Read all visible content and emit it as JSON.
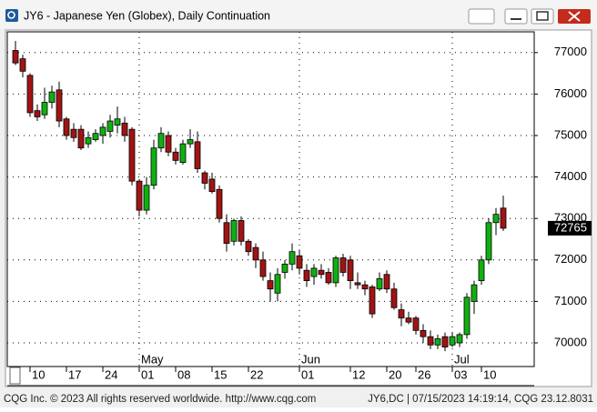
{
  "window_title": "JY6 - Japanese Yen (Globex), Daily Continuation",
  "footer_left": "CQG Inc. © 2023 All rights reserved worldwide. http://www.cqg.com",
  "footer_right": "JY6,DC | 07/15/2023 14:19:14, CQG 23.12.8031",
  "chart_data": {
    "type": "candlestick",
    "categories": [
      null,
      null,
      "10",
      null,
      null,
      null,
      null,
      "17",
      null,
      null,
      null,
      null,
      "24",
      null,
      null,
      null,
      null,
      "01",
      null,
      null,
      null,
      null,
      "08",
      null,
      null,
      null,
      null,
      "15",
      null,
      null,
      null,
      null,
      "22",
      null,
      null,
      null,
      null,
      null,
      null,
      "01",
      null,
      null,
      null,
      null,
      null,
      null,
      "12",
      null,
      null,
      null,
      null,
      "20",
      null,
      null,
      null,
      "26",
      null,
      null,
      null,
      null,
      "03",
      null,
      null,
      null,
      "10",
      null,
      null,
      null
    ],
    "months": [
      null,
      null,
      null,
      null,
      null,
      null,
      null,
      null,
      null,
      null,
      null,
      null,
      null,
      null,
      null,
      null,
      null,
      "May",
      null,
      null,
      null,
      null,
      null,
      null,
      null,
      null,
      null,
      null,
      null,
      null,
      null,
      null,
      null,
      null,
      null,
      null,
      null,
      null,
      null,
      "Jun",
      null,
      null,
      null,
      null,
      null,
      null,
      null,
      null,
      null,
      null,
      null,
      null,
      null,
      null,
      null,
      null,
      null,
      null,
      null,
      null,
      "Jul",
      null,
      null,
      null,
      null,
      null,
      null,
      null
    ],
    "open": [
      77050,
      76850,
      76450,
      75600,
      75500,
      75800,
      76100,
      75400,
      75150,
      75150,
      74800,
      74900,
      75000,
      75100,
      75250,
      75300,
      75150,
      73900,
      73200,
      73800,
      74700,
      75000,
      74600,
      74350,
      74800,
      74850,
      74100,
      73950,
      73700,
      72900,
      72450,
      72950,
      72450,
      72300,
      72000,
      71500,
      71200,
      71700,
      71900,
      72100,
      71750,
      71600,
      71750,
      71700,
      71450,
      72050,
      72000,
      71450,
      71400,
      71350,
      71300,
      71650,
      71300,
      70800,
      70600,
      70600,
      70300,
      70150,
      69950,
      70150,
      69950,
      70000,
      70200,
      71000,
      71500,
      72000,
      72900,
      73250
    ],
    "high": [
      77280,
      76950,
      76500,
      75750,
      76150,
      76200,
      76300,
      75450,
      75300,
      75250,
      75100,
      75150,
      75300,
      75500,
      75700,
      75450,
      75200,
      73950,
      74000,
      74900,
      75200,
      75100,
      74700,
      74900,
      75150,
      75100,
      74150,
      74100,
      73800,
      73100,
      73000,
      73050,
      72500,
      72400,
      72200,
      71700,
      71800,
      72000,
      72400,
      72250,
      71900,
      71900,
      71900,
      71800,
      72100,
      72150,
      72100,
      71700,
      71500,
      71400,
      71700,
      71750,
      71450,
      70950,
      70750,
      70650,
      70450,
      70300,
      70200,
      70250,
      70250,
      70250,
      71200,
      71500,
      72100,
      73000,
      73250,
      73550
    ],
    "low": [
      76700,
      76400,
      75450,
      75350,
      75400,
      75650,
      75200,
      74900,
      74850,
      74650,
      74700,
      74850,
      74800,
      74950,
      75050,
      74850,
      73800,
      73050,
      73100,
      73700,
      74600,
      74500,
      74300,
      74300,
      74700,
      74100,
      73700,
      73600,
      72900,
      72200,
      72350,
      72350,
      72100,
      71800,
      71500,
      71000,
      71000,
      71550,
      71750,
      71650,
      71350,
      71400,
      71550,
      71400,
      71350,
      71600,
      71300,
      71300,
      71150,
      70600,
      71250,
      71200,
      70800,
      70400,
      70450,
      70200,
      70000,
      69850,
      69850,
      69800,
      69900,
      69900,
      70100,
      70700,
      71400,
      71900,
      72600,
      72700
    ],
    "close": [
      76750,
      76550,
      75550,
      75450,
      75800,
      76050,
      75350,
      75000,
      74950,
      74700,
      74950,
      75050,
      75200,
      75350,
      75400,
      75000,
      73900,
      73200,
      73800,
      74700,
      75050,
      74600,
      74400,
      74800,
      74900,
      74200,
      73850,
      73650,
      73000,
      72400,
      72950,
      72450,
      72200,
      72000,
      71600,
      71300,
      71650,
      71900,
      72200,
      71800,
      71500,
      71800,
      71650,
      71450,
      72050,
      71700,
      71500,
      71400,
      71300,
      70700,
      71550,
      71300,
      70850,
      70600,
      70500,
      70300,
      70150,
      69950,
      70100,
      69900,
      70150,
      70200,
      71100,
      71400,
      72000,
      72900,
      73100,
      72765
    ],
    "last_value": 72765,
    "up_color": "#10b010",
    "down_color": "#a01414",
    "ylim": [
      69430,
      77500
    ],
    "yticks": [
      70000,
      71000,
      72000,
      73000,
      74000,
      75000,
      76000,
      77000
    ],
    "grid": true
  }
}
